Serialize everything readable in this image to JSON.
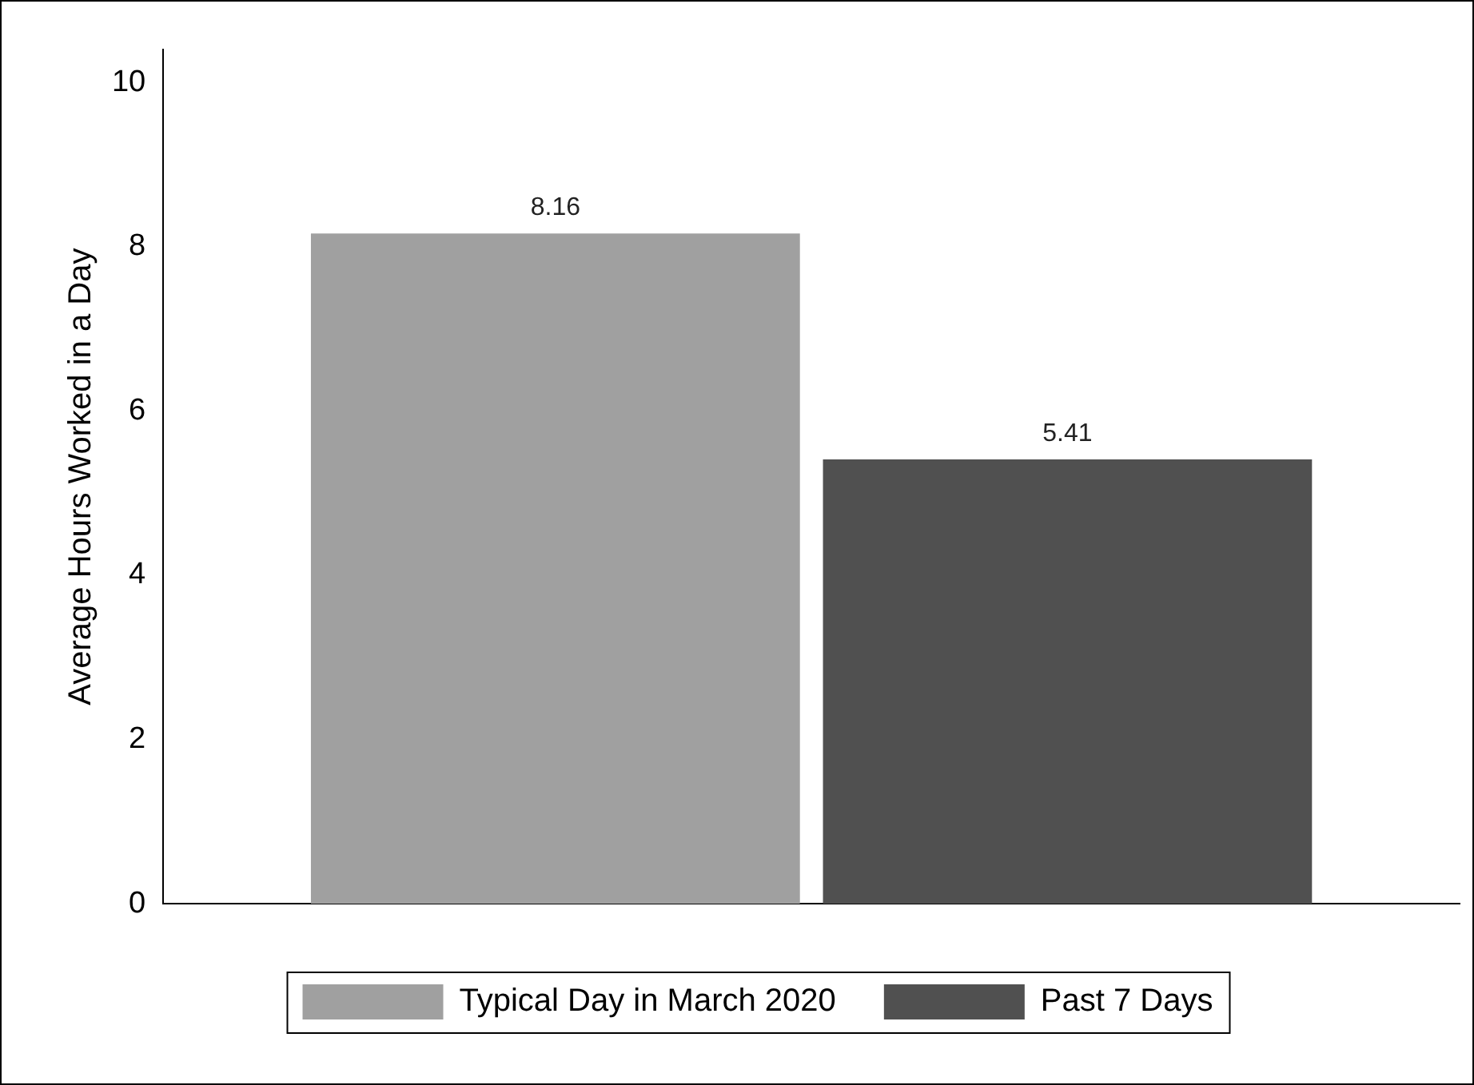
{
  "chart_data": {
    "type": "bar",
    "ylabel": "Average Hours Worked in a Day",
    "categories": [
      null
    ],
    "series": [
      {
        "name": "Typical Day in March 2020",
        "color": "#a0a0a0",
        "values": [
          8.16
        ]
      },
      {
        "name": "Past 7 Days",
        "color": "#505050",
        "values": [
          5.41
        ]
      }
    ],
    "ylim": [
      0,
      10.4
    ],
    "yticks": [
      0,
      2,
      4,
      6,
      8,
      10
    ],
    "grid": false,
    "legend": "bottom",
    "data_labels": true
  }
}
